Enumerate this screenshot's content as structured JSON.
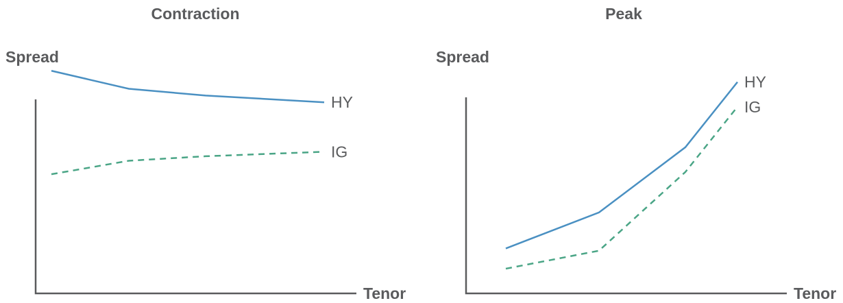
{
  "colors": {
    "hy": "#4a90c2",
    "ig": "#4aa586",
    "axis": "#5a5b5d"
  },
  "chart_data": [
    {
      "type": "line",
      "title": "Contraction",
      "xlabel": "Tenor",
      "ylabel": "Spread",
      "x": [
        1,
        2,
        3,
        4
      ],
      "ylim": [
        0,
        10
      ],
      "xlim": [
        0,
        4.2
      ],
      "series": [
        {
          "name": "HY",
          "style": "solid",
          "values": [
            9.9,
            9.1,
            8.8,
            8.5
          ]
        },
        {
          "name": "IG",
          "style": "dashed",
          "values": [
            5.3,
            5.9,
            6.1,
            6.3
          ]
        }
      ]
    },
    {
      "type": "line",
      "title": "Peak",
      "xlabel": "Tenor",
      "ylabel": "Spread",
      "x": [
        1,
        2,
        3,
        4
      ],
      "ylim": [
        0,
        10
      ],
      "xlim": [
        0,
        4.2
      ],
      "series": [
        {
          "name": "HY",
          "style": "solid",
          "values": [
            2.0,
            3.6,
            6.5,
            9.4
          ]
        },
        {
          "name": "IG",
          "style": "dashed",
          "values": [
            1.1,
            1.9,
            5.4,
            8.3
          ]
        }
      ]
    }
  ]
}
